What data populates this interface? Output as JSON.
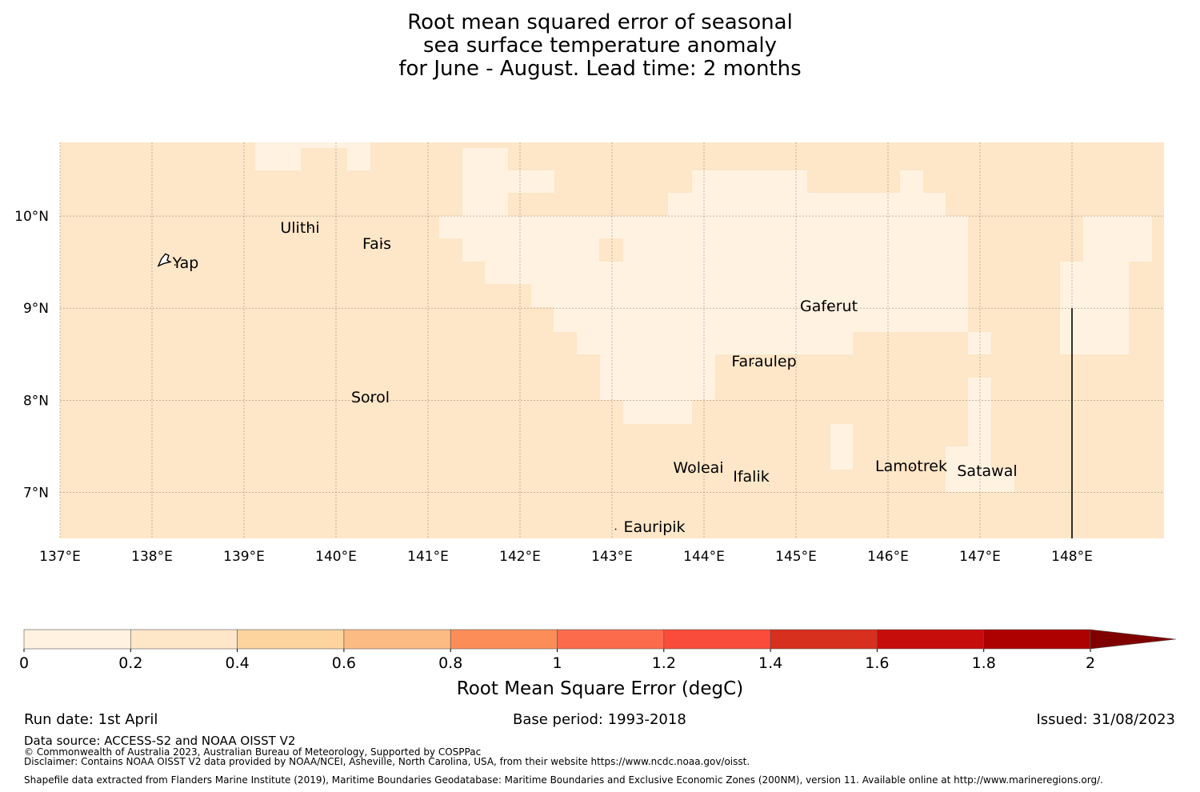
{
  "title_lines": [
    "Root mean squared error of seasonal",
    "sea surface temperature anomaly",
    "for June - August. Lead time: 2 months"
  ],
  "map": {
    "lon_range": [
      137,
      149
    ],
    "lat_range": [
      6.5,
      10.8
    ],
    "lon_ticks": [
      {
        "v": 137,
        "label": "137°E"
      },
      {
        "v": 138,
        "label": "138°E"
      },
      {
        "v": 139,
        "label": "139°E"
      },
      {
        "v": 140,
        "label": "140°E"
      },
      {
        "v": 141,
        "label": "141°E"
      },
      {
        "v": 142,
        "label": "142°E"
      },
      {
        "v": 143,
        "label": "143°E"
      },
      {
        "v": 144,
        "label": "144°E"
      },
      {
        "v": 145,
        "label": "145°E"
      },
      {
        "v": 146,
        "label": "146°E"
      },
      {
        "v": 147,
        "label": "147°E"
      },
      {
        "v": 148,
        "label": "148°E"
      }
    ],
    "lat_ticks": [
      {
        "v": 10,
        "label": "10°N"
      },
      {
        "v": 9,
        "label": "9°N"
      },
      {
        "v": 8,
        "label": "8°N"
      },
      {
        "v": 7,
        "label": "7°N"
      }
    ],
    "background_color": "#fee6c8",
    "low_error_color": "#fff2e1",
    "boundary_line": {
      "lon": 148,
      "lat_from": 6.5,
      "lat_to": 9.0
    },
    "islands": [
      {
        "name": "Yap",
        "lon": 138.25,
        "lat": 9.47
      },
      {
        "name": "Ulithi",
        "lon": 139.72,
        "lat": 9.87
      },
      {
        "name": "Fais",
        "lon": 140.5,
        "lat": 9.7
      },
      {
        "name": "Sorol",
        "lon": 140.38,
        "lat": 8.0
      },
      {
        "name": "Gaferut",
        "lon": 145.36,
        "lat": 9.0
      },
      {
        "name": "Faraulep",
        "lon": 144.53,
        "lat": 8.4
      },
      {
        "name": "Woleai",
        "lon": 143.87,
        "lat": 7.24
      },
      {
        "name": "Ifalik",
        "lon": 144.5,
        "lat": 7.15
      },
      {
        "name": "Eauripik",
        "lon": 143.04,
        "lat": 6.6
      },
      {
        "name": "Lamotrek",
        "lon": 146.26,
        "lat": 7.27
      },
      {
        "name": "Satawal",
        "lon": 147.04,
        "lat": 7.22
      }
    ]
  },
  "colorbar": {
    "boundaries": [
      0,
      0.2,
      0.4,
      0.6,
      0.8,
      1.0,
      1.2,
      1.4,
      1.6,
      1.8,
      2.0
    ],
    "tick_labels": [
      "0",
      "0.2",
      "0.4",
      "0.6",
      "0.8",
      "1",
      "1.2",
      "1.4",
      "1.6",
      "1.8",
      "2"
    ],
    "colors": [
      "#fff2e1",
      "#fee6c8",
      "#fdd49e",
      "#fdbb84",
      "#fc8d59",
      "#fc6b4c",
      "#f94c3a",
      "#d7301f",
      "#c70c0c",
      "#ad0000"
    ],
    "extend_color": "#800000",
    "label": "Root Mean Square Error (degC)"
  },
  "footer": {
    "run_date": "Run date: 1st April",
    "base_period": "Base period: 1993-2018",
    "issued": "Issued: 31/08/2023",
    "data_source": "Data source: ACCESS-S2 and NOAA OISST V2",
    "copyright": "© Commonwealth of Australia 2023, Australian Bureau of Meteorology, Supported by COSPPac",
    "disclaimer": "Disclaimer: Contains NOAA OISST V2 data provided by NOAA/NCEI, Asheville, North Carolina, USA, from their website https://www.ncdc.noaa.gov/oisst.",
    "shapefile": "Shapefile data extracted from Flanders Marine Institute (2019), Maritime Boundaries Geodatabase: Maritime Boundaries and Exclusive Economic Zones (200NM), version 11. Available online at http://www.marineregions.org/."
  }
}
